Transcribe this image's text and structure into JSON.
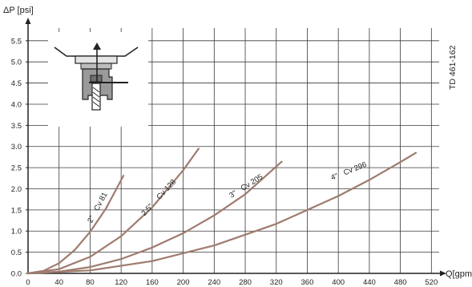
{
  "chart_data": {
    "type": "line",
    "xlabel": "Q[gpm]",
    "ylabel": "ΔP [psi]",
    "doc_id": "TD 461-162",
    "xlim": [
      0,
      530
    ],
    "ylim": [
      0,
      5.8
    ],
    "x_ticks": [
      0,
      40,
      80,
      120,
      160,
      200,
      240,
      280,
      320,
      360,
      400,
      440,
      480,
      520
    ],
    "y_ticks": [
      0.0,
      0.5,
      1.0,
      1.5,
      2.0,
      2.5,
      3.0,
      3.5,
      4.0,
      4.5,
      5.0,
      5.5
    ],
    "x_tick_labels": [
      "0",
      "40",
      "80",
      "120",
      "160",
      "200",
      "240",
      "280",
      "320",
      "360",
      "400",
      "440",
      "480",
      "520"
    ],
    "y_tick_labels": [
      "0.0",
      "0.5",
      "1.0",
      "1.5",
      "2.0",
      "2.5",
      "3.0",
      "3.5",
      "4.0",
      "4.5",
      "5.0",
      "5.5"
    ],
    "grid": true,
    "series": [
      {
        "name": "2\"  Cv 81",
        "color": "#9e7b6e",
        "x": [
          0,
          20,
          40,
          60,
          80,
          100,
          123
        ],
        "y": [
          0.0,
          0.06,
          0.24,
          0.55,
          0.98,
          1.52,
          2.31
        ]
      },
      {
        "name": "2.5\"  Cv 128",
        "color": "#9e7b6e",
        "x": [
          0,
          40,
          80,
          120,
          160,
          200,
          220
        ],
        "y": [
          0.0,
          0.1,
          0.39,
          0.88,
          1.56,
          2.44,
          2.95
        ]
      },
      {
        "name": "3\"  Cv 205",
        "color": "#9e7b6e",
        "x": [
          0,
          40,
          80,
          120,
          160,
          200,
          240,
          280,
          327
        ],
        "y": [
          0.0,
          0.04,
          0.15,
          0.34,
          0.61,
          0.95,
          1.37,
          1.87,
          2.64
        ]
      },
      {
        "name": "4\"  Cv 296",
        "color": "#9e7b6e",
        "x": [
          0,
          80,
          160,
          240,
          320,
          400,
          440,
          480,
          500
        ],
        "y": [
          0.0,
          0.07,
          0.29,
          0.66,
          1.17,
          1.83,
          2.21,
          2.63,
          2.85
        ]
      }
    ]
  },
  "series_labels": [
    {
      "model": "2\"",
      "cv": "Cv 81"
    },
    {
      "model": "2.5\"",
      "cv": "Cv 128"
    },
    {
      "model": "3\"",
      "cv": "Cv 205"
    },
    {
      "model": "4\"",
      "cv": "Cv 296"
    }
  ],
  "colors": {
    "curve": "#9e7b6e",
    "grid": "#3a3a3a",
    "axis": "#222222",
    "icon_body": "#9a9a9a"
  },
  "inset_icon": "valve-cross-section-icon"
}
